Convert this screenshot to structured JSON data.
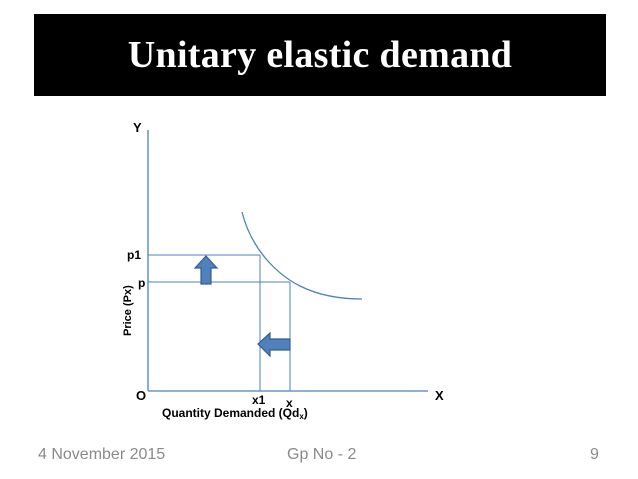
{
  "slide": {
    "title": "Unitary elastic demand",
    "footer_date": "4 November 2015",
    "footer_group": "Gp No - 2",
    "page_number": "9"
  },
  "diagram": {
    "axis_y_label": "Y",
    "axis_x_label": "X",
    "origin_label": "O",
    "price_axis_title": "Price (Px)",
    "quantity_axis_title_main": "Quantity Demanded (Qd",
    "quantity_axis_title_sub": "x",
    "quantity_axis_title_close": ")",
    "price_labels": {
      "p1": "p1",
      "p": "p"
    },
    "quantity_labels": {
      "x1": "x1",
      "x": "x"
    },
    "curve_color": "#4f81bd",
    "arrow_fill": "#4f81bd",
    "arrow_stroke": "#385d8a",
    "axis_color": "#4f81bd"
  }
}
